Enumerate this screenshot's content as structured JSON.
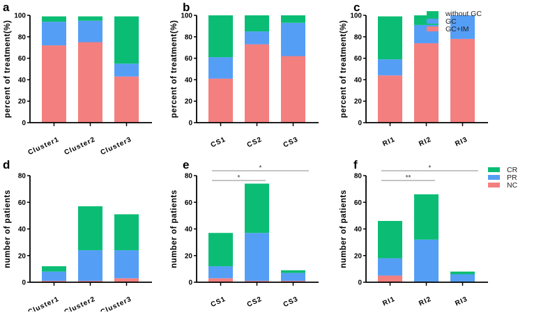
{
  "colors": {
    "green": "#0bbd74",
    "blue": "#559ef6",
    "red": "#f47f7f"
  },
  "legends": [
    {
      "items": [
        {
          "label": "without GC",
          "color": "green"
        },
        {
          "label": "GC",
          "color": "blue"
        },
        {
          "label": "GC+IM",
          "color": "red"
        }
      ]
    },
    {
      "items": [
        {
          "label": "CR",
          "color": "green"
        },
        {
          "label": "PR",
          "color": "blue"
        },
        {
          "label": "NC",
          "color": "red"
        }
      ]
    }
  ],
  "chart_data": [
    {
      "panel": "a",
      "type": "bar",
      "stacked": true,
      "ylabel": "percent of treatment(%)",
      "ylim": [
        0,
        100
      ],
      "yticks": [
        0,
        20,
        40,
        60,
        80,
        100
      ],
      "categories": [
        "Cluster1",
        "Cluster2",
        "Cluster3"
      ],
      "series": [
        {
          "name": "GC+IM",
          "color": "red",
          "values": [
            72,
            75,
            43
          ]
        },
        {
          "name": "GC",
          "color": "blue",
          "values": [
            22,
            20,
            12
          ]
        },
        {
          "name": "without GC",
          "color": "green",
          "values": [
            5,
            4,
            44
          ]
        }
      ]
    },
    {
      "panel": "b",
      "type": "bar",
      "stacked": true,
      "ylabel": "percent of treatment(%)",
      "ylim": [
        0,
        100
      ],
      "yticks": [
        0,
        20,
        40,
        60,
        80,
        100
      ],
      "categories": [
        "CS1",
        "CS2",
        "CS3"
      ],
      "series": [
        {
          "name": "GC+IM",
          "color": "red",
          "values": [
            41,
            73,
            62
          ]
        },
        {
          "name": "GC",
          "color": "blue",
          "values": [
            20,
            12,
            31
          ]
        },
        {
          "name": "without GC",
          "color": "green",
          "values": [
            39,
            15,
            7
          ]
        }
      ]
    },
    {
      "panel": "c",
      "type": "bar",
      "stacked": true,
      "ylabel": "percent of treatment(%)",
      "ylim": [
        0,
        100
      ],
      "yticks": [
        0,
        20,
        40,
        60,
        80,
        100
      ],
      "categories": [
        "RI1",
        "RI2",
        "RI3"
      ],
      "series": [
        {
          "name": "GC+IM",
          "color": "red",
          "values": [
            44,
            74,
            78
          ]
        },
        {
          "name": "GC",
          "color": "blue",
          "values": [
            15,
            17,
            22
          ]
        },
        {
          "name": "without GC",
          "color": "green",
          "values": [
            40,
            9,
            0
          ]
        }
      ]
    },
    {
      "panel": "d",
      "type": "bar",
      "stacked": true,
      "ylabel": "number of patients",
      "ylim": [
        0,
        80
      ],
      "yticks": [
        0,
        20,
        40,
        60,
        80
      ],
      "categories": [
        "Cluster1",
        "Cluster2",
        "Cluster3"
      ],
      "series": [
        {
          "name": "NC",
          "color": "red",
          "values": [
            1,
            1,
            3
          ]
        },
        {
          "name": "PR",
          "color": "blue",
          "values": [
            7,
            23,
            21
          ]
        },
        {
          "name": "CR",
          "color": "green",
          "values": [
            4,
            33,
            27
          ]
        }
      ]
    },
    {
      "panel": "e",
      "type": "bar",
      "stacked": true,
      "ylabel": "number of patients",
      "ylim": [
        0,
        80
      ],
      "yticks": [
        0,
        20,
        40,
        60,
        80
      ],
      "categories": [
        "CS1",
        "CS2",
        "CS3"
      ],
      "series": [
        {
          "name": "NC",
          "color": "red",
          "values": [
            3,
            1,
            1
          ]
        },
        {
          "name": "PR",
          "color": "blue",
          "values": [
            9,
            36,
            6
          ]
        },
        {
          "name": "CR",
          "color": "green",
          "values": [
            25,
            37,
            2
          ]
        }
      ],
      "significance": [
        {
          "from": 0,
          "to": 2,
          "label": "*"
        },
        {
          "from": 0,
          "to": 1,
          "label": "*"
        }
      ]
    },
    {
      "panel": "f",
      "type": "bar",
      "stacked": true,
      "ylabel": "number of patients",
      "ylim": [
        0,
        80
      ],
      "yticks": [
        0,
        20,
        40,
        60,
        80
      ],
      "categories": [
        "RI1",
        "RI2",
        "RI3"
      ],
      "series": [
        {
          "name": "NC",
          "color": "red",
          "values": [
            5,
            0,
            0
          ]
        },
        {
          "name": "PR",
          "color": "blue",
          "values": [
            13,
            32,
            6
          ]
        },
        {
          "name": "CR",
          "color": "green",
          "values": [
            28,
            34,
            2
          ]
        }
      ],
      "significance": [
        {
          "from": 0,
          "to": 2,
          "label": "*"
        },
        {
          "from": 0,
          "to": 1,
          "label": "**"
        }
      ]
    }
  ]
}
